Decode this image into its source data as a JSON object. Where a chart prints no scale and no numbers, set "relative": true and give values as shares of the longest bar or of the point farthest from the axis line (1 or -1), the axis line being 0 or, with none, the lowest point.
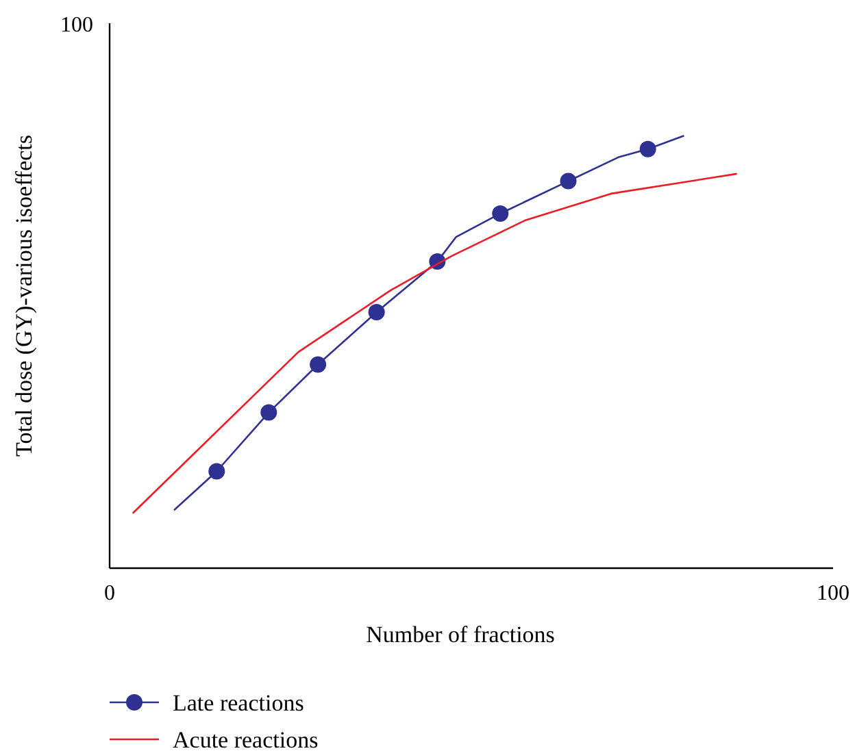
{
  "chart_data": {
    "type": "line",
    "xlabel": "Number of fractions",
    "ylabel": "Total dose (GY)-various isoeffects",
    "relative": true,
    "xlim": [
      0,
      100
    ],
    "xticks": [
      0,
      100
    ],
    "annotations": [
      "100"
    ],
    "grid": false,
    "legend": "bottom left",
    "series": [
      {
        "name": "Late reactions",
        "color": "#2e3192",
        "marker": "none",
        "x": [
          8.9,
          14.8,
          22.0,
          28.8,
          36.9,
          45.3,
          47.9,
          54.0,
          63.4,
          70.3,
          74.4,
          79.4
        ],
        "values": [
          0.134,
          0.224,
          0.36,
          0.471,
          0.592,
          0.709,
          0.766,
          0.82,
          0.895,
          0.95,
          0.969,
          1
        ]
      },
      {
        "type": "scatter",
        "color": "#2e3192",
        "marker": "circle",
        "x": [
          14.8,
          22.0,
          28.8,
          36.9,
          45.3,
          54.0,
          63.4,
          74.4
        ],
        "values": [
          0.224,
          0.36,
          0.471,
          0.592,
          0.709,
          0.82,
          0.895,
          0.969
        ]
      },
      {
        "name": "Acute reactions",
        "color": "#ed1c24",
        "marker": "none",
        "x": [
          3.2,
          26.1,
          38.8,
          47.3,
          57.4,
          69.3,
          86.7
        ],
        "values": [
          0.127,
          0.5,
          0.642,
          0.722,
          0.804,
          0.866,
          0.912
        ]
      }
    ]
  }
}
